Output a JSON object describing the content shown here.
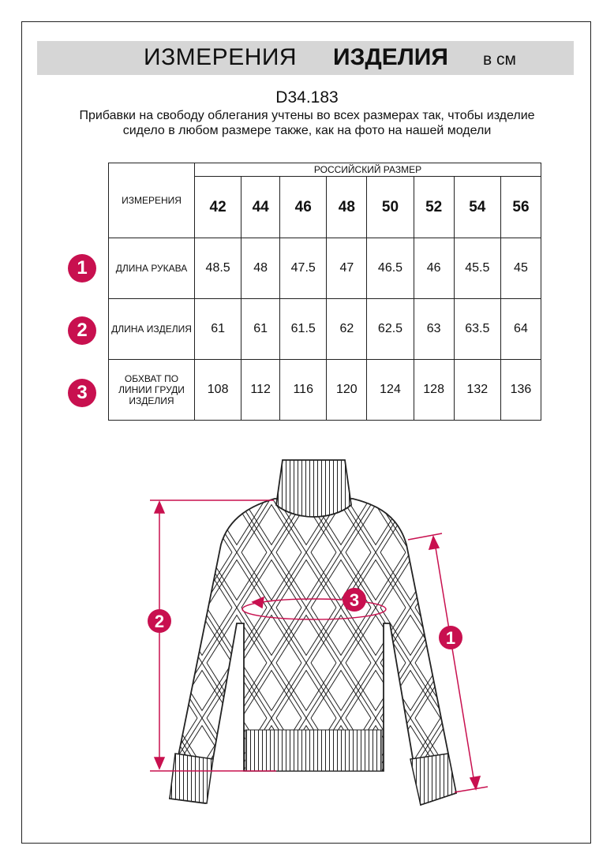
{
  "header": {
    "title_regular": "ИЗМЕРЕНИЯ",
    "title_bold": "ИЗДЕЛИЯ",
    "unit": "в см"
  },
  "product_code": "D34.183",
  "note": "Прибавки на свободу облегания учтены во всех размерах так, чтобы изделие сидело в любом размере также, как на фото на нашей модели",
  "table": {
    "corner_label": "ИЗМЕРЕНИЯ",
    "size_group_label": "РОССИЙСКИЙ РАЗМЕР",
    "sizes": [
      "42",
      "44",
      "46",
      "48",
      "50",
      "52",
      "54",
      "56"
    ],
    "rows": [
      {
        "marker": "1",
        "label": "ДЛИНА РУКАВА",
        "values": [
          "48.5",
          "48",
          "47.5",
          "47",
          "46.5",
          "46",
          "45.5",
          "45"
        ]
      },
      {
        "marker": "2",
        "label": "ДЛИНА ИЗДЕЛИЯ",
        "values": [
          "61",
          "61",
          "61.5",
          "62",
          "62.5",
          "63",
          "63.5",
          "64"
        ]
      },
      {
        "marker": "3",
        "label": "ОБХВАТ ПО ЛИНИИ ГРУДИ ИЗДЕЛИЯ",
        "values": [
          "108",
          "112",
          "116",
          "120",
          "124",
          "128",
          "132",
          "136"
        ]
      }
    ]
  },
  "diagram": {
    "markers": [
      "1",
      "2",
      "3"
    ]
  },
  "colors": {
    "accent": "#c8104f",
    "banner": "#d6d6d6"
  }
}
